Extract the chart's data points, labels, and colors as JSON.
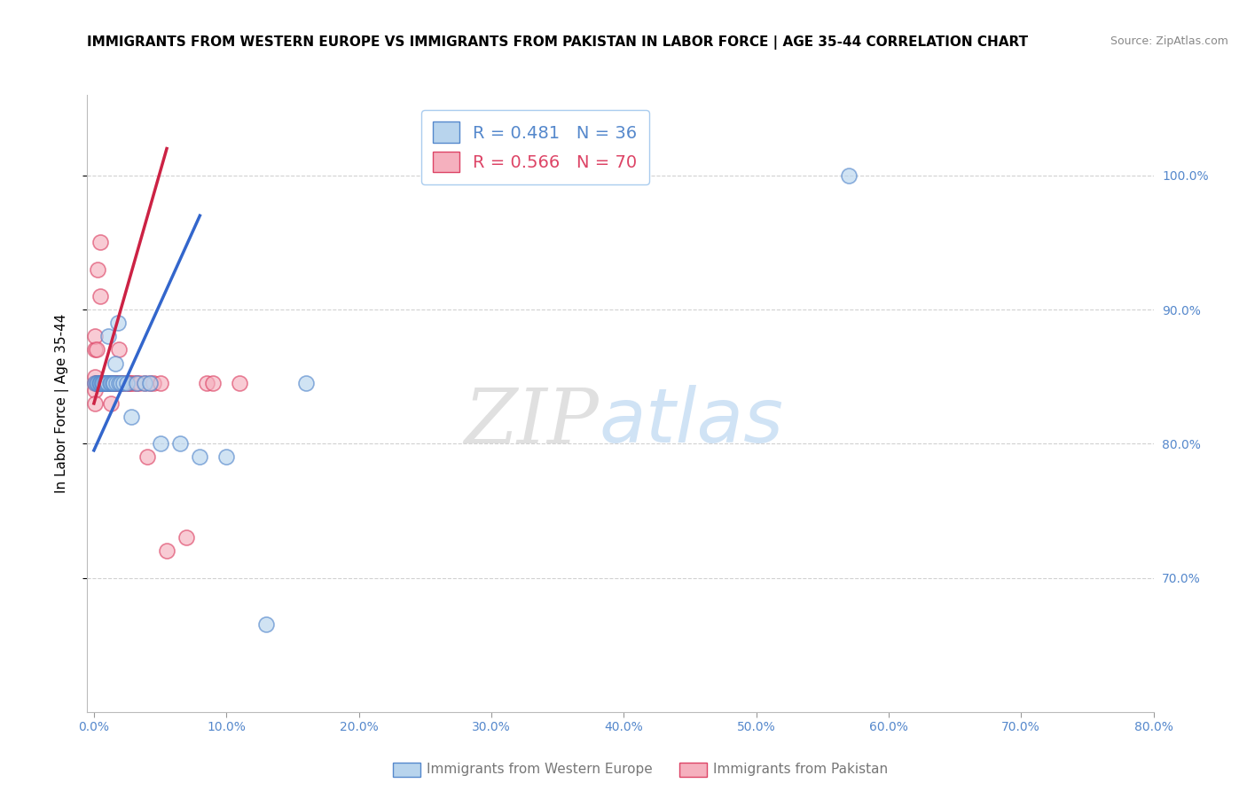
{
  "title": "IMMIGRANTS FROM WESTERN EUROPE VS IMMIGRANTS FROM PAKISTAN IN LABOR FORCE | AGE 35-44 CORRELATION CHART",
  "source": "Source: ZipAtlas.com",
  "ylabel": "In Labor Force | Age 35-44",
  "legend_blue_r": "R = 0.481",
  "legend_blue_n": "N = 36",
  "legend_pink_r": "R = 0.566",
  "legend_pink_n": "N = 70",
  "watermark_left": "ZIP",
  "watermark_right": "atlas",
  "blue_face": "#b8d4ed",
  "pink_face": "#f5b0be",
  "blue_edge": "#5588cc",
  "pink_edge": "#dd4466",
  "blue_line_color": "#3366cc",
  "pink_line_color": "#cc2244",
  "tick_color": "#5588cc",
  "blue_scatter_x": [
    0.001,
    0.002,
    0.003,
    0.004,
    0.005,
    0.005,
    0.006,
    0.006,
    0.007,
    0.008,
    0.009,
    0.01,
    0.01,
    0.011,
    0.012,
    0.013,
    0.014,
    0.015,
    0.016,
    0.017,
    0.018,
    0.019,
    0.02,
    0.022,
    0.025,
    0.028,
    0.032,
    0.038,
    0.042,
    0.05,
    0.065,
    0.08,
    0.1,
    0.13,
    0.16,
    0.57
  ],
  "blue_scatter_y": [
    0.845,
    0.845,
    0.845,
    0.845,
    0.845,
    0.845,
    0.845,
    0.845,
    0.845,
    0.845,
    0.845,
    0.845,
    0.845,
    0.88,
    0.845,
    0.845,
    0.845,
    0.845,
    0.86,
    0.845,
    0.89,
    0.845,
    0.845,
    0.845,
    0.845,
    0.82,
    0.845,
    0.845,
    0.845,
    0.8,
    0.8,
    0.79,
    0.79,
    0.665,
    0.845,
    1.0
  ],
  "pink_scatter_x": [
    0.001,
    0.001,
    0.001,
    0.001,
    0.001,
    0.001,
    0.002,
    0.002,
    0.002,
    0.002,
    0.002,
    0.003,
    0.003,
    0.003,
    0.004,
    0.004,
    0.004,
    0.005,
    0.005,
    0.005,
    0.006,
    0.006,
    0.006,
    0.007,
    0.007,
    0.008,
    0.008,
    0.009,
    0.009,
    0.01,
    0.01,
    0.01,
    0.011,
    0.011,
    0.012,
    0.012,
    0.013,
    0.013,
    0.014,
    0.015,
    0.015,
    0.016,
    0.017,
    0.018,
    0.019,
    0.02,
    0.021,
    0.022,
    0.025,
    0.026,
    0.027,
    0.028,
    0.03,
    0.032,
    0.034,
    0.038,
    0.04,
    0.042,
    0.045,
    0.05,
    0.055,
    0.07,
    0.085,
    0.09,
    0.11,
    0.013,
    0.013,
    0.014,
    0.014,
    0.016
  ],
  "pink_scatter_y": [
    0.845,
    0.85,
    0.84,
    0.83,
    0.87,
    0.88,
    0.845,
    0.845,
    0.845,
    0.87,
    0.845,
    0.845,
    0.93,
    0.845,
    0.845,
    0.845,
    0.845,
    0.845,
    0.91,
    0.95,
    0.845,
    0.845,
    0.845,
    0.845,
    0.845,
    0.845,
    0.845,
    0.845,
    0.845,
    0.845,
    0.845,
    0.845,
    0.845,
    0.845,
    0.845,
    0.845,
    0.845,
    0.83,
    0.845,
    0.845,
    0.845,
    0.845,
    0.845,
    0.845,
    0.87,
    0.845,
    0.845,
    0.845,
    0.845,
    0.845,
    0.845,
    0.845,
    0.845,
    0.845,
    0.845,
    0.845,
    0.79,
    0.845,
    0.845,
    0.845,
    0.72,
    0.73,
    0.845,
    0.845,
    0.845,
    0.845,
    0.845,
    0.845,
    0.845,
    0.845
  ],
  "blue_line_x": [
    0.0,
    0.08
  ],
  "blue_line_y": [
    0.795,
    0.97
  ],
  "pink_line_x": [
    0.0,
    0.055
  ],
  "pink_line_y": [
    0.83,
    1.02
  ],
  "xlim": [
    -0.005,
    0.8
  ],
  "ylim": [
    0.6,
    1.06
  ],
  "yticks": [
    0.7,
    0.8,
    0.9,
    1.0
  ],
  "ytick_labels": [
    "70.0%",
    "80.0%",
    "90.0%",
    "100.0%"
  ],
  "xticks": [
    0.0,
    0.1,
    0.2,
    0.3,
    0.4,
    0.5,
    0.6,
    0.7,
    0.8
  ],
  "xtick_labels": [
    "0.0%",
    "10.0%",
    "20.0%",
    "30.0%",
    "40.0%",
    "50.0%",
    "60.0%",
    "70.0%",
    "80.0%"
  ]
}
